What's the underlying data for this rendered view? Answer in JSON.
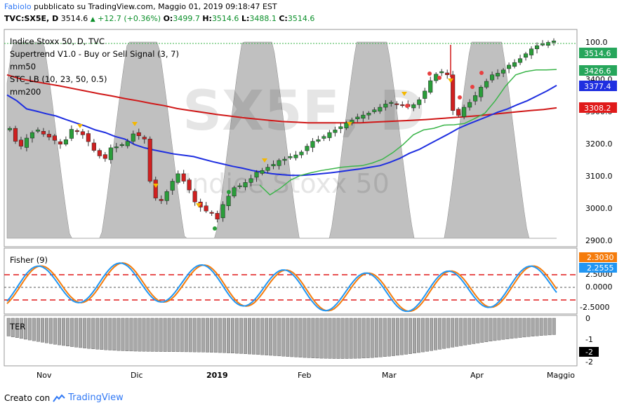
{
  "header": {
    "author": "Fabiolo",
    "published_on": "pubblicato su TradingView.com, Maggio 01, 2019 09:18:47 EST",
    "symbol": "TVC:SX5E, D",
    "last": "3514.6",
    "change": "+12.7 (+0.36%)",
    "open_label": "O:",
    "open": "3499.7",
    "high_label": "H:",
    "high": "3514.6",
    "low_label": "L:",
    "low": "3488.1",
    "close_label": "C:",
    "close": "3514.6"
  },
  "legend": {
    "title": "Indice Stoxx 50, D, TVC",
    "supertrend": "Supertrend V1.0 - Buy or Sell Signal (3, 7)",
    "mm50": "mm50",
    "stc": "STC_LB (10, 23, 50, 0.5)",
    "mm200": "mm200"
  },
  "watermark": {
    "big": "SX5E, D",
    "small": "Indice Stoxx 50"
  },
  "price_axis": {
    "ticks": [
      "3400.0",
      "3300.0",
      "3200.0",
      "3100.0",
      "3000.0",
      "2900.0"
    ],
    "stc_top": "100.0",
    "badges": [
      {
        "label": "3514.6",
        "color": "#26a65b"
      },
      {
        "label": "3426.6",
        "color": "#26a65b"
      },
      {
        "label": "3377.4",
        "color": "#1f2fe0"
      },
      {
        "label": "3308.2",
        "color": "#e01a1a"
      }
    ]
  },
  "fisher": {
    "title": "Fisher (9)",
    "ticks": [
      "2.5000",
      "0.0000",
      "-2.5000"
    ],
    "badges": [
      {
        "label": "2.3030",
        "color": "#f57c0c"
      },
      {
        "label": "2.2555",
        "color": "#2196f3"
      }
    ]
  },
  "lower": {
    "title": "TER",
    "ticks": [
      "0",
      "-1",
      "-2"
    ],
    "badge": "-2"
  },
  "x_axis": {
    "labels": [
      "Nov",
      "Dic",
      "2019",
      "Feb",
      "Mar",
      "Apr",
      "Maggio"
    ]
  },
  "footer": {
    "created_with": "Creato con",
    "brand": "TradingView"
  },
  "chart_data": {
    "type": "candlestick",
    "period": "D",
    "ylim": [
      2880,
      3550
    ],
    "price_series": [
      3245,
      3205,
      3190,
      3215,
      3232,
      3240,
      3227,
      3218,
      3208,
      3196,
      3210,
      3242,
      3235,
      3225,
      3204,
      3177,
      3160,
      3152,
      3185,
      3188,
      3195,
      3205,
      3228,
      3222,
      3212,
      3082,
      3030,
      3022,
      3050,
      3082,
      3105,
      3082,
      3055,
      3018,
      3002,
      2990,
      2983,
      2965,
      3010,
      3036,
      3062,
      3068,
      3078,
      3090,
      3110,
      3115,
      3125,
      3134,
      3146,
      3150,
      3158,
      3163,
      3172,
      3190,
      3205,
      3210,
      3220,
      3232,
      3240,
      3250,
      3262,
      3270,
      3280,
      3286,
      3292,
      3302,
      3310,
      3320,
      3325,
      3318,
      3315,
      3312,
      3318,
      3333,
      3360,
      3392,
      3412,
      3420,
      3410,
      3300,
      3285,
      3310,
      3325,
      3346,
      3372,
      3390,
      3410,
      3415,
      3425,
      3440,
      3448,
      3460,
      3475,
      3490,
      3500,
      3505,
      3510,
      3514.6
    ],
    "mm50": [
      3348,
      3330,
      3305,
      3298,
      3290,
      3283,
      3272,
      3262,
      3252,
      3240,
      3232,
      3220,
      3212,
      3195,
      3185,
      3178,
      3172,
      3166,
      3162,
      3158,
      3150,
      3142,
      3135,
      3128,
      3122,
      3115,
      3110,
      3105,
      3102,
      3100,
      3100,
      3102,
      3105,
      3108,
      3112,
      3116,
      3120,
      3125,
      3130,
      3140,
      3152,
      3168,
      3180,
      3196,
      3212,
      3228,
      3245,
      3258,
      3270,
      3282,
      3295,
      3305,
      3318,
      3330,
      3345,
      3360,
      3377.4
    ],
    "mm200": [
      3410,
      3398,
      3390,
      3383,
      3376,
      3368,
      3360,
      3352,
      3345,
      3337,
      3330,
      3322,
      3315,
      3306,
      3300,
      3294,
      3288,
      3283,
      3278,
      3274,
      3270,
      3266,
      3264,
      3262,
      3262,
      3262,
      3262,
      3262,
      3264,
      3266,
      3268,
      3270,
      3272,
      3275,
      3278,
      3281,
      3284,
      3288,
      3292,
      3296,
      3300,
      3303,
      3308.2
    ],
    "supertrend": [
      3070,
      3040,
      3060,
      3085,
      3100,
      3108,
      3115,
      3120,
      3125,
      3128,
      3130,
      3138,
      3150,
      3170,
      3195,
      3225,
      3240,
      3245,
      3255,
      3256,
      3260,
      3275,
      3292,
      3330,
      3375,
      3410,
      3420,
      3425,
      3425,
      3426.6
    ],
    "stc_hint": "oscillating 0-100 in background (gray area)",
    "fisher": {
      "fast_color": "#2196f3",
      "slow_color": "#f57c0c",
      "fast_last": 2.2555,
      "slow_last": 2.303,
      "levels": [
        1.5,
        0,
        -1.5
      ]
    }
  }
}
